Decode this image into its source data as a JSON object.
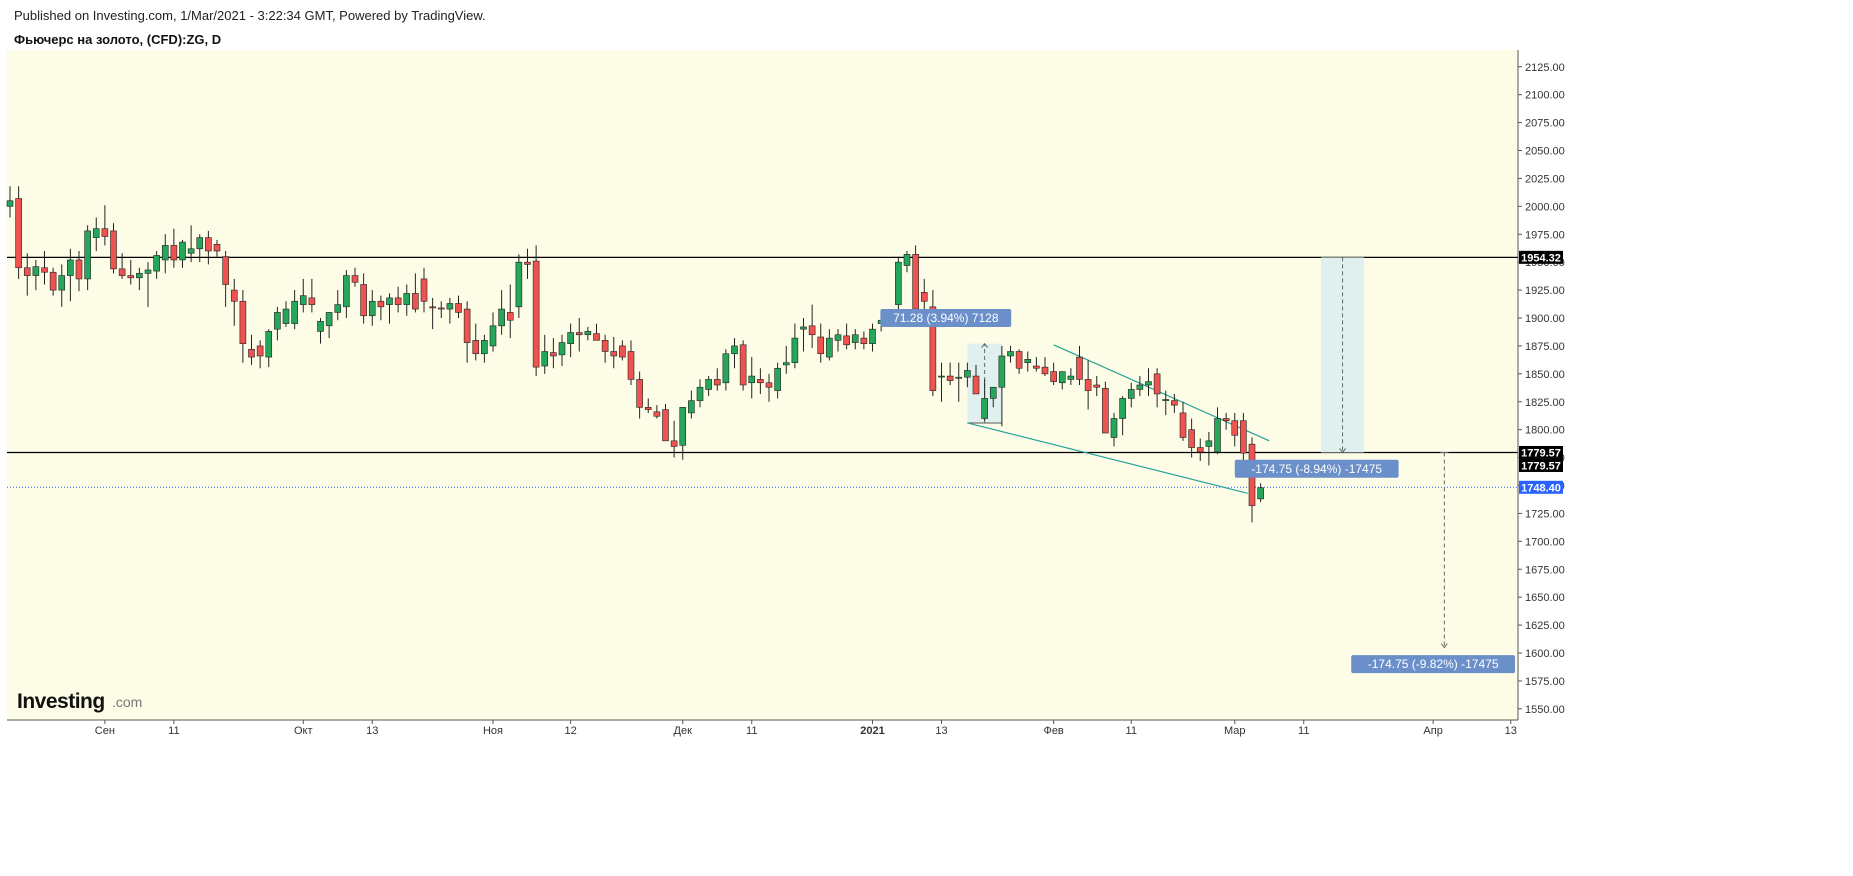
{
  "header": {
    "published": "Published on Investing.com, 1/Mar/2021 - 3:22:34 GMT, Powered by TradingView.",
    "symbol": "Фьючерс на золото, (CFD):ZG, D"
  },
  "logo": {
    "main": "Investing",
    "domain": ".com"
  },
  "colors": {
    "up": "#26a65b",
    "down": "#ef5350",
    "background": "#fdfde7",
    "level_line": "#000000",
    "current_line": "#2962ff",
    "current_tag": "#2962ff",
    "annotation_box": "#6a8fc9",
    "trend_line": "#2aa198",
    "measure_fill": "#dbeef0"
  },
  "chart_data": {
    "type": "candlestick",
    "title": "Фьючерс на золото, (CFD):ZG, D",
    "ylim": [
      1540,
      2140
    ],
    "y_ticks": [
      1550,
      1575,
      1600,
      1625,
      1650,
      1675,
      1700,
      1725,
      1750,
      1775,
      1800,
      1825,
      1850,
      1875,
      1900,
      1925,
      1950,
      1975,
      2000,
      2025,
      2050,
      2075,
      2100,
      2125
    ],
    "x_labels": [
      {
        "label": "Сен",
        "bar": 11
      },
      {
        "label": "11",
        "bar": 19
      },
      {
        "label": "Окт",
        "bar": 34
      },
      {
        "label": "13",
        "bar": 42
      },
      {
        "label": "Ноя",
        "bar": 56
      },
      {
        "label": "12",
        "bar": 65
      },
      {
        "label": "Дек",
        "bar": 78
      },
      {
        "label": "11",
        "bar": 86
      },
      {
        "label": "2021",
        "bar": 100,
        "bold": true
      },
      {
        "label": "13",
        "bar": 108
      },
      {
        "label": "Фев",
        "bar": 121
      },
      {
        "label": "11",
        "bar": 130
      },
      {
        "label": "Мар",
        "bar": 142
      },
      {
        "label": "11",
        "bar": 150
      },
      {
        "label": "Апр",
        "bar": 165
      },
      {
        "label": "13",
        "bar": 174
      }
    ],
    "levels": [
      {
        "value": 1954.32,
        "label": "1954.32",
        "style": "solid"
      },
      {
        "value": 1779.57,
        "label": "1779.57",
        "style": "solid"
      }
    ],
    "right_tags": [
      {
        "value": 1954.32,
        "label": "1954.32",
        "kind": "level"
      },
      {
        "value": 1779.57,
        "label": "1779.57",
        "kind": "level"
      },
      {
        "value": 1779.57,
        "label": "1779.57",
        "kind": "level2"
      },
      {
        "value": 1748.4,
        "label": "1748.40",
        "kind": "current"
      }
    ],
    "current_price": 1748.4,
    "annotations": [
      {
        "text": "71.28 (3.94%) 7128",
        "bar": 108.5,
        "value": 1900
      },
      {
        "text": "-174.75 (-8.94%) -17475",
        "bar": 151.5,
        "value": 1765
      },
      {
        "text": "-174.75 (-9.82%) -17475",
        "bar": 165,
        "value": 1590
      }
    ],
    "measure_ranges": [
      {
        "bar_start": 111,
        "bar_end": 115,
        "from": 1806,
        "to": 1877
      },
      {
        "bar_start": 152,
        "bar_end": 157,
        "from": 1954.32,
        "to": 1779.57
      }
    ],
    "measure_arrows": [
      {
        "bar": 166.3,
        "from": 1779.57,
        "to": 1604.82
      }
    ],
    "trend_lines": [
      {
        "from": [
          111,
          1806
        ],
        "to": [
          143.5,
          1743
        ]
      },
      {
        "from": [
          121,
          1876
        ],
        "to": [
          146,
          1790
        ]
      }
    ],
    "candles": [
      [
        2000,
        2018,
        1990,
        2005
      ],
      [
        2007,
        2018,
        1935,
        1945
      ],
      [
        1945,
        1958,
        1920,
        1938
      ],
      [
        1938,
        1952,
        1925,
        1946
      ],
      [
        1945,
        1960,
        1930,
        1941
      ],
      [
        1941,
        1945,
        1920,
        1925
      ],
      [
        1925,
        1948,
        1910,
        1938
      ],
      [
        1938,
        1962,
        1915,
        1952
      ],
      [
        1952,
        1960,
        1924,
        1935
      ],
      [
        1935,
        1983,
        1925,
        1978
      ],
      [
        1972,
        1990,
        1960,
        1980
      ],
      [
        1980,
        2001,
        1965,
        1973
      ],
      [
        1978,
        1985,
        1940,
        1944
      ],
      [
        1944,
        1958,
        1935,
        1938
      ],
      [
        1938,
        1952,
        1930,
        1936
      ],
      [
        1936,
        1945,
        1925,
        1940
      ],
      [
        1940,
        1950,
        1910,
        1943
      ],
      [
        1942,
        1960,
        1935,
        1956
      ],
      [
        1952,
        1975,
        1940,
        1965
      ],
      [
        1965,
        1980,
        1945,
        1952
      ],
      [
        1952,
        1970,
        1945,
        1968
      ],
      [
        1958,
        1983,
        1950,
        1962
      ],
      [
        1962,
        1975,
        1950,
        1972
      ],
      [
        1972,
        1978,
        1948,
        1960
      ],
      [
        1966,
        1970,
        1955,
        1960
      ],
      [
        1955,
        1960,
        1910,
        1930
      ],
      [
        1925,
        1935,
        1893,
        1915
      ],
      [
        1915,
        1925,
        1860,
        1877
      ],
      [
        1872,
        1885,
        1858,
        1865
      ],
      [
        1875,
        1880,
        1855,
        1866
      ],
      [
        1865,
        1890,
        1856,
        1888
      ],
      [
        1890,
        1910,
        1880,
        1905
      ],
      [
        1895,
        1915,
        1892,
        1908
      ],
      [
        1895,
        1925,
        1890,
        1915
      ],
      [
        1912,
        1935,
        1905,
        1920
      ],
      [
        1918,
        1935,
        1905,
        1912
      ],
      [
        1888,
        1900,
        1877,
        1897
      ],
      [
        1893,
        1902,
        1882,
        1905
      ],
      [
        1905,
        1925,
        1898,
        1912
      ],
      [
        1910,
        1943,
        1900,
        1938
      ],
      [
        1938,
        1945,
        1928,
        1932
      ],
      [
        1930,
        1940,
        1895,
        1902
      ],
      [
        1902,
        1925,
        1893,
        1915
      ],
      [
        1915,
        1920,
        1898,
        1910
      ],
      [
        1912,
        1922,
        1895,
        1918
      ],
      [
        1918,
        1928,
        1905,
        1912
      ],
      [
        1912,
        1930,
        1902,
        1922
      ],
      [
        1922,
        1940,
        1905,
        1908
      ],
      [
        1935,
        1945,
        1905,
        1915
      ],
      [
        1910,
        1918,
        1890,
        1909
      ],
      [
        1909,
        1915,
        1900,
        1908
      ],
      [
        1908,
        1918,
        1895,
        1913
      ],
      [
        1913,
        1920,
        1900,
        1905
      ],
      [
        1908,
        1915,
        1860,
        1878
      ],
      [
        1880,
        1895,
        1862,
        1868
      ],
      [
        1868,
        1885,
        1860,
        1880
      ],
      [
        1875,
        1905,
        1870,
        1893
      ],
      [
        1893,
        1925,
        1885,
        1908
      ],
      [
        1905,
        1930,
        1882,
        1898
      ],
      [
        1910,
        1957,
        1900,
        1950
      ],
      [
        1950,
        1962,
        1935,
        1948
      ],
      [
        1951,
        1965,
        1848,
        1856
      ],
      [
        1857,
        1885,
        1850,
        1870
      ],
      [
        1869,
        1882,
        1855,
        1866
      ],
      [
        1867,
        1885,
        1857,
        1878
      ],
      [
        1877,
        1895,
        1865,
        1887
      ],
      [
        1887,
        1900,
        1870,
        1885
      ],
      [
        1885,
        1892,
        1880,
        1888
      ],
      [
        1886,
        1895,
        1880,
        1880
      ],
      [
        1880,
        1885,
        1860,
        1870
      ],
      [
        1870,
        1883,
        1855,
        1866
      ],
      [
        1875,
        1880,
        1862,
        1865
      ],
      [
        1870,
        1880,
        1840,
        1845
      ],
      [
        1845,
        1852,
        1810,
        1820
      ],
      [
        1820,
        1828,
        1815,
        1818
      ],
      [
        1816,
        1822,
        1810,
        1812
      ],
      [
        1818,
        1823,
        1795,
        1790
      ],
      [
        1790,
        1808,
        1775,
        1785
      ],
      [
        1786,
        1815,
        1773,
        1820
      ],
      [
        1815,
        1835,
        1810,
        1826
      ],
      [
        1826,
        1845,
        1820,
        1838
      ],
      [
        1836,
        1848,
        1830,
        1845
      ],
      [
        1845,
        1855,
        1835,
        1840
      ],
      [
        1842,
        1872,
        1835,
        1868
      ],
      [
        1868,
        1882,
        1855,
        1875
      ],
      [
        1876,
        1880,
        1835,
        1840
      ],
      [
        1842,
        1865,
        1828,
        1848
      ],
      [
        1845,
        1855,
        1832,
        1842
      ],
      [
        1842,
        1850,
        1825,
        1838
      ],
      [
        1835,
        1860,
        1828,
        1855
      ],
      [
        1858,
        1875,
        1850,
        1860
      ],
      [
        1860,
        1895,
        1855,
        1882
      ],
      [
        1890,
        1900,
        1870,
        1892
      ],
      [
        1893,
        1912,
        1873,
        1885
      ],
      [
        1883,
        1895,
        1860,
        1868
      ],
      [
        1865,
        1890,
        1862,
        1882
      ],
      [
        1880,
        1890,
        1870,
        1885
      ],
      [
        1884,
        1895,
        1872,
        1876
      ],
      [
        1878,
        1890,
        1872,
        1885
      ],
      [
        1882,
        1888,
        1872,
        1877
      ],
      [
        1877,
        1895,
        1870,
        1890
      ],
      [
        1895,
        1906,
        1888,
        1898
      ],
      [
        1900,
        1905,
        1895,
        1900
      ],
      [
        1912,
        1955,
        1905,
        1950
      ],
      [
        1947,
        1960,
        1941,
        1957
      ],
      [
        1957,
        1965,
        1902,
        1908
      ],
      [
        1923,
        1935,
        1900,
        1915
      ],
      [
        1910,
        1925,
        1830,
        1835
      ],
      [
        1848,
        1860,
        1825,
        1848
      ],
      [
        1848,
        1860,
        1840,
        1844
      ],
      [
        1846,
        1860,
        1825,
        1847
      ],
      [
        1847,
        1860,
        1838,
        1853
      ],
      [
        1848,
        1858,
        1836,
        1832
      ],
      [
        1810,
        1845,
        1808,
        1828
      ],
      [
        1828,
        1838,
        1820,
        1838
      ],
      [
        1838,
        1875,
        1803,
        1866
      ],
      [
        1866,
        1875,
        1860,
        1870
      ],
      [
        1870,
        1872,
        1850,
        1855
      ],
      [
        1860,
        1870,
        1852,
        1863
      ],
      [
        1857,
        1865,
        1852,
        1855
      ],
      [
        1856,
        1865,
        1848,
        1850
      ],
      [
        1852,
        1860,
        1840,
        1843
      ],
      [
        1842,
        1850,
        1836,
        1852
      ],
      [
        1845,
        1855,
        1840,
        1848
      ],
      [
        1865,
        1875,
        1840,
        1845
      ],
      [
        1845,
        1862,
        1818,
        1835
      ],
      [
        1840,
        1848,
        1830,
        1838
      ],
      [
        1837,
        1843,
        1800,
        1797
      ],
      [
        1793,
        1815,
        1785,
        1810
      ],
      [
        1810,
        1830,
        1795,
        1828
      ],
      [
        1828,
        1842,
        1820,
        1836
      ],
      [
        1836,
        1848,
        1830,
        1840
      ],
      [
        1840,
        1855,
        1830,
        1843
      ],
      [
        1850,
        1855,
        1820,
        1832
      ],
      [
        1826,
        1835,
        1813,
        1827
      ],
      [
        1826,
        1832,
        1815,
        1822
      ],
      [
        1815,
        1825,
        1790,
        1793
      ],
      [
        1800,
        1810,
        1775,
        1784
      ],
      [
        1784,
        1792,
        1772,
        1780
      ],
      [
        1785,
        1798,
        1768,
        1790
      ],
      [
        1780,
        1820,
        1778,
        1810
      ],
      [
        1810,
        1815,
        1800,
        1808
      ],
      [
        1808,
        1815,
        1785,
        1795
      ],
      [
        1808,
        1815,
        1770,
        1779
      ],
      [
        1787,
        1793,
        1717,
        1732
      ],
      [
        1738,
        1752,
        1735,
        1748
      ]
    ]
  }
}
